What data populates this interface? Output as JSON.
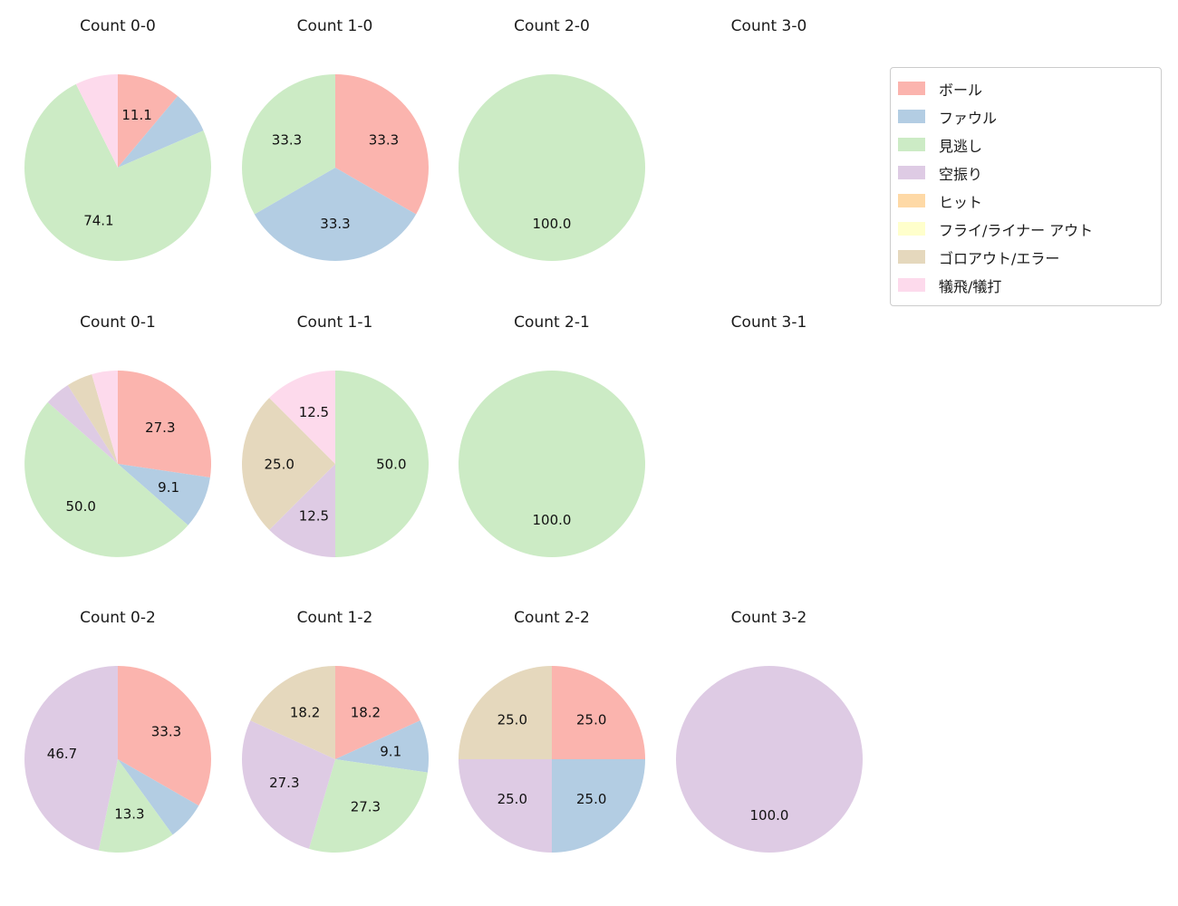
{
  "figure": {
    "background": "#ffffff"
  },
  "legend": {
    "position": "top-right",
    "items": [
      {
        "label": "ボール",
        "color": "#fbb4ae"
      },
      {
        "label": "ファウル",
        "color": "#b3cde3"
      },
      {
        "label": "見逃し",
        "color": "#ccebc5"
      },
      {
        "label": "空振り",
        "color": "#decbe4"
      },
      {
        "label": "ヒット",
        "color": "#fed9a6"
      },
      {
        "label": "フライ/ライナー アウト",
        "color": "#ffffcc"
      },
      {
        "label": "ゴロアウト/エラー",
        "color": "#e5d8bd"
      },
      {
        "label": "犠飛/犠打",
        "color": "#fddaec"
      }
    ]
  },
  "chart_data": [
    {
      "type": "pie",
      "title": "Count 0-0",
      "grid": {
        "row": 0,
        "col": 0
      },
      "start_angle": 90,
      "clockwise": true,
      "pct_distance": 0.6,
      "slices": [
        {
          "label": "ボール",
          "value": 11.1,
          "show_label": true
        },
        {
          "label": "ファウル",
          "value": 7.4,
          "show_label": false
        },
        {
          "label": "見逃し",
          "value": 74.1,
          "show_label": true
        },
        {
          "label": "犠飛/犠打",
          "value": 7.4,
          "show_label": false
        }
      ]
    },
    {
      "type": "pie",
      "title": "Count 1-0",
      "grid": {
        "row": 0,
        "col": 1
      },
      "start_angle": 90,
      "clockwise": true,
      "pct_distance": 0.6,
      "slices": [
        {
          "label": "ボール",
          "value": 33.3,
          "show_label": true
        },
        {
          "label": "ファウル",
          "value": 33.3,
          "show_label": true
        },
        {
          "label": "見逃し",
          "value": 33.3,
          "show_label": true
        }
      ]
    },
    {
      "type": "pie",
      "title": "Count 2-0",
      "grid": {
        "row": 0,
        "col": 2
      },
      "start_angle": 90,
      "clockwise": true,
      "pct_distance": 0.6,
      "slices": [
        {
          "label": "見逃し",
          "value": 100.0,
          "show_label": true
        }
      ]
    },
    {
      "type": "pie",
      "title": "Count 3-0",
      "grid": {
        "row": 0,
        "col": 3
      },
      "start_angle": 90,
      "clockwise": true,
      "pct_distance": 0.6,
      "slices": []
    },
    {
      "type": "pie",
      "title": "Count 0-1",
      "grid": {
        "row": 1,
        "col": 0
      },
      "start_angle": 90,
      "clockwise": true,
      "pct_distance": 0.6,
      "slices": [
        {
          "label": "ボール",
          "value": 27.3,
          "show_label": true
        },
        {
          "label": "ファウル",
          "value": 9.1,
          "show_label": true
        },
        {
          "label": "見逃し",
          "value": 50.0,
          "show_label": true
        },
        {
          "label": "空振り",
          "value": 4.5,
          "show_label": false
        },
        {
          "label": "ゴロアウト/エラー",
          "value": 4.5,
          "show_label": false
        },
        {
          "label": "犠飛/犠打",
          "value": 4.5,
          "show_label": false
        }
      ]
    },
    {
      "type": "pie",
      "title": "Count 1-1",
      "grid": {
        "row": 1,
        "col": 1
      },
      "start_angle": 90,
      "clockwise": true,
      "pct_distance": 0.6,
      "slices": [
        {
          "label": "見逃し",
          "value": 50.0,
          "show_label": true
        },
        {
          "label": "空振り",
          "value": 12.5,
          "show_label": true
        },
        {
          "label": "ゴロアウト/エラー",
          "value": 25.0,
          "show_label": true
        },
        {
          "label": "犠飛/犠打",
          "value": 12.5,
          "show_label": true
        }
      ]
    },
    {
      "type": "pie",
      "title": "Count 2-1",
      "grid": {
        "row": 1,
        "col": 2
      },
      "start_angle": 90,
      "clockwise": true,
      "pct_distance": 0.6,
      "slices": [
        {
          "label": "見逃し",
          "value": 100.0,
          "show_label": true
        }
      ]
    },
    {
      "type": "pie",
      "title": "Count 3-1",
      "grid": {
        "row": 1,
        "col": 3
      },
      "start_angle": 90,
      "clockwise": true,
      "pct_distance": 0.6,
      "slices": []
    },
    {
      "type": "pie",
      "title": "Count 0-2",
      "grid": {
        "row": 2,
        "col": 0
      },
      "start_angle": 90,
      "clockwise": true,
      "pct_distance": 0.6,
      "slices": [
        {
          "label": "ボール",
          "value": 33.3,
          "show_label": true
        },
        {
          "label": "ファウル",
          "value": 6.7,
          "show_label": false
        },
        {
          "label": "見逃し",
          "value": 13.3,
          "show_label": true
        },
        {
          "label": "空振り",
          "value": 46.7,
          "show_label": true
        }
      ]
    },
    {
      "type": "pie",
      "title": "Count 1-2",
      "grid": {
        "row": 2,
        "col": 1
      },
      "start_angle": 90,
      "clockwise": true,
      "pct_distance": 0.6,
      "slices": [
        {
          "label": "ボール",
          "value": 18.2,
          "show_label": true
        },
        {
          "label": "ファウル",
          "value": 9.1,
          "show_label": true
        },
        {
          "label": "見逃し",
          "value": 27.3,
          "show_label": true
        },
        {
          "label": "空振り",
          "value": 27.3,
          "show_label": true
        },
        {
          "label": "ゴロアウト/エラー",
          "value": 18.2,
          "show_label": true
        }
      ]
    },
    {
      "type": "pie",
      "title": "Count 2-2",
      "grid": {
        "row": 2,
        "col": 2
      },
      "start_angle": 90,
      "clockwise": true,
      "pct_distance": 0.6,
      "slices": [
        {
          "label": "ボール",
          "value": 25.0,
          "show_label": true
        },
        {
          "label": "ファウル",
          "value": 25.0,
          "show_label": true
        },
        {
          "label": "空振り",
          "value": 25.0,
          "show_label": true
        },
        {
          "label": "ゴロアウト/エラー",
          "value": 25.0,
          "show_label": true
        }
      ]
    },
    {
      "type": "pie",
      "title": "Count 3-2",
      "grid": {
        "row": 2,
        "col": 3
      },
      "start_angle": 90,
      "clockwise": true,
      "pct_distance": 0.6,
      "slices": [
        {
          "label": "空振り",
          "value": 100.0,
          "show_label": true
        }
      ]
    }
  ]
}
